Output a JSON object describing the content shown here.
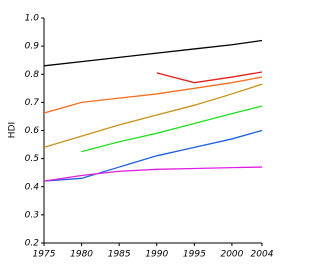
{
  "chart_data": {
    "type": "line",
    "y_label": "HDI",
    "x": [
      1975,
      1980,
      1985,
      1990,
      1995,
      2000,
      2004
    ],
    "xlim": [
      1975,
      2004
    ],
    "xticks": [
      1975,
      1980,
      1985,
      1990,
      1995,
      2000,
      2004
    ],
    "ylim": [
      0.2,
      1
    ],
    "yticks": [
      0.2,
      0.3,
      0.4,
      0.5,
      0.6,
      0.7,
      0.8,
      0.9,
      {
        "value": 1,
        "label": "1.0"
      }
    ],
    "grid": false,
    "series": [
      {
        "color": "#000000",
        "values": [
          0.83,
          0.845,
          0.86,
          0.875,
          0.89,
          0.905,
          0.92
        ]
      },
      {
        "color": "#e0201c",
        "values": [
          null,
          null,
          null,
          0.805,
          0.77,
          0.79,
          0.808
        ]
      },
      {
        "color": "#f07020",
        "values": [
          0.662,
          0.7,
          0.715,
          0.73,
          0.75,
          0.77,
          0.79
        ]
      },
      {
        "color": "#c8901c",
        "values": [
          0.54,
          0.58,
          0.62,
          0.655,
          0.69,
          0.73,
          0.765
        ]
      },
      {
        "color": "#20e020",
        "values": [
          null,
          0.525,
          0.56,
          0.59,
          0.625,
          0.66,
          0.687
        ]
      },
      {
        "color": "#2060d8",
        "values": [
          0.42,
          0.43,
          0.47,
          0.51,
          0.54,
          0.57,
          0.6
        ]
      },
      {
        "color": "#e020e0",
        "values": [
          0.42,
          0.44,
          0.455,
          0.462,
          0.465,
          0.468,
          0.47
        ]
      }
    ]
  }
}
